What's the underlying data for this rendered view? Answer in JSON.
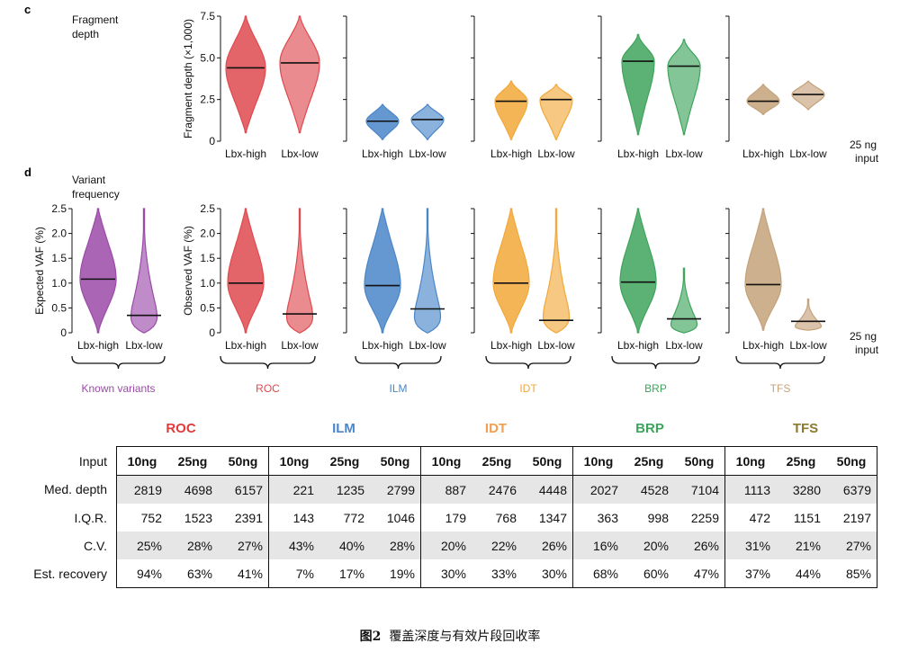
{
  "panel_c": {
    "letter": "c",
    "label_line1": "Fragment",
    "label_line2": "depth"
  },
  "panel_d": {
    "letter": "d",
    "label_line1": "Variant",
    "label_line2": "frequency"
  },
  "input_note": [
    "25 ng",
    "input"
  ],
  "colors": {
    "Known variants": "#9b4aa8",
    "ROC": "#de4a4f",
    "ILM": "#4a86c8",
    "IDT": "#f2a83a",
    "BRP": "#3ea45c",
    "TFS": "#c4a27a"
  },
  "chart_data": [
    {
      "type": "violin",
      "ylabel": "Fragment depth (×1,000)",
      "ylim": [
        0,
        7.5
      ],
      "yticks": [
        "0",
        "2.5",
        "5.0",
        "7.5"
      ],
      "categories": [
        "Lbx-high",
        "Lbx-low"
      ],
      "groups": [
        {
          "name": "ROC",
          "medians": [
            4.4,
            4.7
          ],
          "ranges": [
            [
              0.5,
              7.5
            ],
            [
              0.5,
              7.5
            ]
          ]
        },
        {
          "name": "ILM",
          "medians": [
            1.2,
            1.3
          ],
          "ranges": [
            [
              0.1,
              2.2
            ],
            [
              0.1,
              2.2
            ]
          ]
        },
        {
          "name": "IDT",
          "medians": [
            2.4,
            2.5
          ],
          "ranges": [
            [
              0.1,
              3.6
            ],
            [
              0.1,
              3.4
            ]
          ]
        },
        {
          "name": "BRP",
          "medians": [
            4.8,
            4.5
          ],
          "ranges": [
            [
              0.4,
              6.4
            ],
            [
              0.4,
              6.1
            ]
          ]
        },
        {
          "name": "TFS",
          "medians": [
            2.4,
            2.8
          ],
          "ranges": [
            [
              1.6,
              3.4
            ],
            [
              1.9,
              3.6
            ]
          ]
        }
      ]
    },
    {
      "type": "violin",
      "ylabel": "Expected VAF (%)",
      "ylim": [
        0,
        2.5
      ],
      "yticks": [
        "0",
        "0.5",
        "1.0",
        "1.5",
        "2.0",
        "2.5"
      ],
      "categories": [
        "Lbx-high",
        "Lbx-low"
      ],
      "groups": [
        {
          "name": "Known variants",
          "medians": [
            1.08,
            0.35
          ],
          "ranges": [
            [
              0.0,
              2.5
            ],
            [
              0.0,
              2.5
            ]
          ]
        }
      ]
    },
    {
      "type": "violin",
      "ylabel": "Observed VAF (%)",
      "ylim": [
        0,
        2.5
      ],
      "yticks": [
        "0",
        "0.5",
        "1.0",
        "1.5",
        "2.0",
        "2.5"
      ],
      "categories": [
        "Lbx-high",
        "Lbx-low"
      ],
      "groups": [
        {
          "name": "ROC",
          "medians": [
            1.0,
            0.38
          ],
          "ranges": [
            [
              0.0,
              2.5
            ],
            [
              0.0,
              2.5
            ]
          ]
        },
        {
          "name": "ILM",
          "medians": [
            0.95,
            0.48
          ],
          "ranges": [
            [
              0.0,
              2.5
            ],
            [
              0.0,
              2.5
            ]
          ]
        },
        {
          "name": "IDT",
          "medians": [
            1.0,
            0.25
          ],
          "ranges": [
            [
              0.0,
              2.5
            ],
            [
              0.0,
              2.5
            ]
          ]
        },
        {
          "name": "BRP",
          "medians": [
            1.02,
            0.28
          ],
          "ranges": [
            [
              0.0,
              2.5
            ],
            [
              0.0,
              1.3
            ]
          ]
        },
        {
          "name": "TFS",
          "medians": [
            0.97,
            0.23
          ],
          "ranges": [
            [
              0.05,
              2.5
            ],
            [
              0.05,
              0.68
            ]
          ]
        }
      ]
    },
    {
      "type": "table",
      "groups": [
        "ROC",
        "ILM",
        "IDT",
        "BRP",
        "TFS"
      ],
      "columns": [
        "10ng",
        "25ng",
        "50ng"
      ],
      "rows": [
        {
          "label": "Med. depth",
          "values": [
            "2819",
            "4698",
            "6157",
            "221",
            "1235",
            "2799",
            "887",
            "2476",
            "4448",
            "2027",
            "4528",
            "7104",
            "1113",
            "3280",
            "6379"
          ]
        },
        {
          "label": "I.Q.R.",
          "values": [
            "752",
            "1523",
            "2391",
            "143",
            "772",
            "1046",
            "179",
            "768",
            "1347",
            "363",
            "998",
            "2259",
            "472",
            "1151",
            "2197"
          ]
        },
        {
          "label": "C.V.",
          "values": [
            "25%",
            "28%",
            "27%",
            "43%",
            "40%",
            "28%",
            "20%",
            "22%",
            "26%",
            "16%",
            "20%",
            "26%",
            "31%",
            "21%",
            "27%"
          ]
        },
        {
          "label": "Est. recovery",
          "values": [
            "94%",
            "63%",
            "41%",
            "7%",
            "17%",
            "19%",
            "30%",
            "33%",
            "30%",
            "68%",
            "60%",
            "47%",
            "37%",
            "44%",
            "85%"
          ]
        }
      ]
    }
  ],
  "table": {
    "input_label": "Input",
    "group_title_colors": [
      "#e03a3a",
      "#4a86c8",
      "#f0a050",
      "#3ea45c",
      "#8a7a2a"
    ]
  },
  "caption": {
    "fig": "图2",
    "text": "覆盖深度与有效片段回收率"
  }
}
